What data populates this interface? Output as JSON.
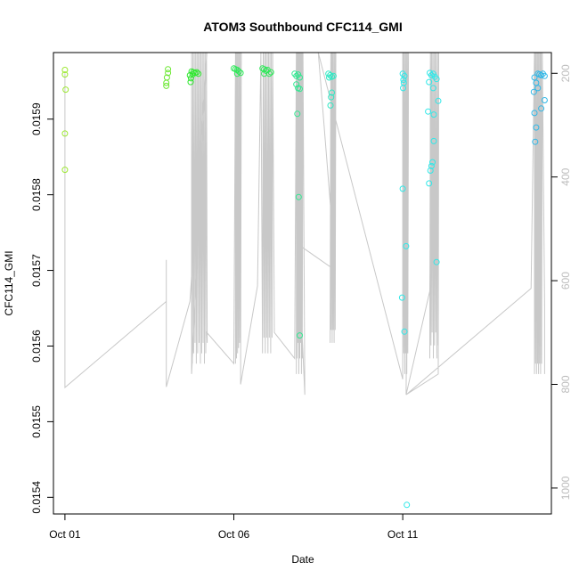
{
  "chart_data": {
    "type": "scatter",
    "title": "ATOM3 Southbound CFC114_GMI",
    "xlabel": "Date",
    "ylabel": "CFC114_GMI",
    "x_tick_labels": [
      "Oct 01",
      "Oct 06",
      "Oct 11"
    ],
    "x_tick_days": [
      1,
      6,
      11
    ],
    "xlim": [
      0.66,
      15.4
    ],
    "ylim": [
      0.015378,
      0.015988
    ],
    "y_ticks": [
      0.0154,
      0.0155,
      0.0156,
      0.0157,
      0.0158,
      0.0159
    ],
    "y_tick_labels": [
      "0.0154",
      "0.0155",
      "0.0156",
      "0.0157",
      "0.0158",
      "0.0159"
    ],
    "right_axis": {
      "label_color": "#bdbdbd",
      "reversed": true,
      "lim": [
        160,
        1050
      ],
      "ticks": [
        200,
        400,
        600,
        800,
        1000
      ],
      "tick_labels": [
        "200",
        "400",
        "600",
        "800",
        "1000"
      ]
    },
    "grid": false,
    "series": [
      {
        "color": "#9ce830",
        "points": [
          [
            1.0,
            0.015965
          ],
          [
            1.0,
            0.015959
          ],
          [
            1.02,
            0.015939
          ],
          [
            1.0,
            0.015881
          ],
          [
            1.0,
            0.015833
          ]
        ]
      },
      {
        "color": "#6ae830",
        "points": [
          [
            4.05,
            0.015966
          ],
          [
            4.05,
            0.015961
          ],
          [
            4.02,
            0.015955
          ],
          [
            4.0,
            0.015948
          ],
          [
            4.0,
            0.015944
          ]
        ]
      },
      {
        "color": "#30e830",
        "points": [
          [
            4.75,
            0.015963
          ],
          [
            4.8,
            0.015962
          ],
          [
            4.85,
            0.015961
          ],
          [
            4.9,
            0.015962
          ],
          [
            4.78,
            0.015959
          ],
          [
            4.95,
            0.01596
          ],
          [
            4.7,
            0.015958
          ],
          [
            4.72,
            0.015949
          ],
          [
            4.73,
            0.015954
          ]
        ]
      },
      {
        "color": "#30e85a",
        "points": [
          [
            6.0,
            0.015967
          ],
          [
            6.05,
            0.015966
          ],
          [
            6.1,
            0.015965
          ],
          [
            6.15,
            0.015963
          ],
          [
            6.1,
            0.01596
          ],
          [
            6.2,
            0.015961
          ],
          [
            6.85,
            0.015967
          ],
          [
            6.9,
            0.015966
          ],
          [
            6.95,
            0.015964
          ],
          [
            7.0,
            0.015965
          ],
          [
            7.05,
            0.01596
          ],
          [
            7.1,
            0.015962
          ],
          [
            6.9,
            0.01596
          ]
        ]
      },
      {
        "color": "#30e891",
        "points": [
          [
            7.8,
            0.01596
          ],
          [
            7.85,
            0.015957
          ],
          [
            7.9,
            0.015959
          ],
          [
            7.95,
            0.015955
          ],
          [
            7.85,
            0.015946
          ],
          [
            7.9,
            0.015941
          ],
          [
            7.95,
            0.01594
          ],
          [
            7.88,
            0.015907
          ],
          [
            7.92,
            0.015797
          ],
          [
            7.95,
            0.015614
          ]
        ]
      },
      {
        "color": "#30e8c4",
        "points": [
          [
            8.8,
            0.01596
          ],
          [
            8.85,
            0.015958
          ],
          [
            8.9,
            0.015956
          ],
          [
            8.95,
            0.015957
          ],
          [
            8.82,
            0.015955
          ],
          [
            8.9,
            0.015935
          ],
          [
            8.88,
            0.015929
          ],
          [
            8.86,
            0.015918
          ]
        ]
      },
      {
        "color": "#30e8e8",
        "points": [
          [
            11.0,
            0.01596
          ],
          [
            11.05,
            0.015957
          ],
          [
            11.02,
            0.015952
          ],
          [
            11.03,
            0.015948
          ],
          [
            11.01,
            0.015941
          ],
          [
            11.0,
            0.015808
          ],
          [
            11.1,
            0.015732
          ],
          [
            10.98,
            0.015664
          ],
          [
            11.05,
            0.015619
          ],
          [
            11.12,
            0.01539
          ],
          [
            11.8,
            0.015961
          ],
          [
            11.85,
            0.015958
          ],
          [
            11.9,
            0.01596
          ],
          [
            11.95,
            0.015956
          ],
          [
            12.0,
            0.015953
          ],
          [
            11.78,
            0.015949
          ],
          [
            11.9,
            0.015941
          ],
          [
            12.05,
            0.015924
          ],
          [
            11.75,
            0.01591
          ],
          [
            11.92,
            0.015906
          ],
          [
            11.92,
            0.015871
          ],
          [
            11.88,
            0.015843
          ],
          [
            11.85,
            0.015838
          ],
          [
            11.82,
            0.015832
          ],
          [
            11.78,
            0.015815
          ],
          [
            12.0,
            0.015711
          ]
        ]
      },
      {
        "color": "#30b8e8",
        "points": [
          [
            15.0,
            0.01596
          ],
          [
            15.05,
            0.015959
          ],
          [
            15.1,
            0.015958
          ],
          [
            15.15,
            0.01596
          ],
          [
            15.2,
            0.015957
          ],
          [
            14.9,
            0.015955
          ],
          [
            14.95,
            0.015948
          ],
          [
            15.0,
            0.015941
          ],
          [
            14.88,
            0.015936
          ],
          [
            15.2,
            0.015925
          ],
          [
            15.1,
            0.015914
          ],
          [
            14.9,
            0.015908
          ],
          [
            14.95,
            0.015889
          ],
          [
            14.92,
            0.01587
          ]
        ]
      }
    ]
  }
}
